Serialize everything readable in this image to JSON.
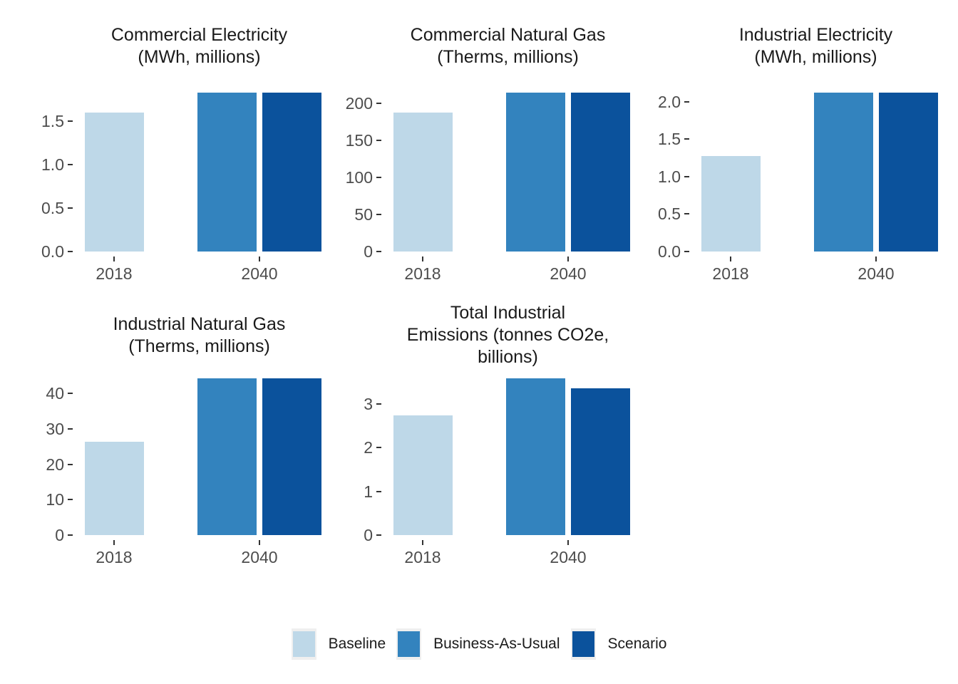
{
  "figure": {
    "background_color": "#ffffff",
    "text_color": "#1a1a1a",
    "axis_text_color": "#4d4d4d",
    "tick_color": "#333333"
  },
  "chart_data": {
    "type": "bar",
    "categories": [
      "2018",
      "2040"
    ],
    "series": [
      {
        "name": "Baseline",
        "category": "2018",
        "color": "#bed8e8"
      },
      {
        "name": "Business-As-Usual",
        "category": "2040",
        "color": "#3383be"
      },
      {
        "name": "Scenario",
        "category": "2040",
        "color": "#0b529c"
      }
    ],
    "legend_position": "bottom",
    "grid": false,
    "facets": [
      {
        "id": "commercial-electricity",
        "title_lines": [
          "Commercial Electricity",
          "(MWh, millions)"
        ],
        "ylim": [
          0,
          1.83
        ],
        "ytick_values": [
          0,
          0.5,
          1.0,
          1.5
        ],
        "ytick_labels": [
          "0.0",
          "0.5",
          "1.0",
          "1.5"
        ],
        "values": {
          "Baseline": 1.6,
          "Business-As-Usual": 1.83,
          "Scenario": 1.83
        }
      },
      {
        "id": "commercial-natural-gas",
        "title_lines": [
          "Commercial Natural Gas",
          "(Therms, millions)"
        ],
        "ylim": [
          0,
          214
        ],
        "ytick_values": [
          0,
          50,
          100,
          150,
          200
        ],
        "ytick_labels": [
          "0",
          "50",
          "100",
          "150",
          "200"
        ],
        "values": {
          "Baseline": 187,
          "Business-As-Usual": 214,
          "Scenario": 214
        }
      },
      {
        "id": "industrial-electricity",
        "title_lines": [
          "Industrial Electricity",
          "(MWh, millions)"
        ],
        "ylim": [
          0,
          2.12
        ],
        "ytick_values": [
          0,
          0.5,
          1.0,
          1.5,
          2.0
        ],
        "ytick_labels": [
          "0.0",
          "0.5",
          "1.0",
          "1.5",
          "2.0"
        ],
        "values": {
          "Baseline": 1.27,
          "Business-As-Usual": 2.12,
          "Scenario": 2.12
        }
      },
      {
        "id": "industrial-natural-gas",
        "title_lines": [
          "Industrial Natural Gas",
          "(Therms, millions)"
        ],
        "ylim": [
          0,
          44.3
        ],
        "ytick_values": [
          0,
          10,
          20,
          30,
          40
        ],
        "ytick_labels": [
          "0",
          "10",
          "20",
          "30",
          "40"
        ],
        "values": {
          "Baseline": 26.3,
          "Business-As-Usual": 44.3,
          "Scenario": 44.3
        }
      },
      {
        "id": "total-industrial-emissions",
        "title_lines": [
          "Total Industrial",
          "Emissions (tonnes CO2e,",
          "billions)"
        ],
        "ylim": [
          0,
          3.58
        ],
        "ytick_values": [
          0,
          1,
          2,
          3
        ],
        "ytick_labels": [
          "0",
          "1",
          "2",
          "3"
        ],
        "values": {
          "Baseline": 2.74,
          "Business-As-Usual": 3.58,
          "Scenario": 3.35
        }
      }
    ]
  },
  "legend": {
    "items": [
      "Baseline",
      "Business-As-Usual",
      "Scenario"
    ]
  }
}
